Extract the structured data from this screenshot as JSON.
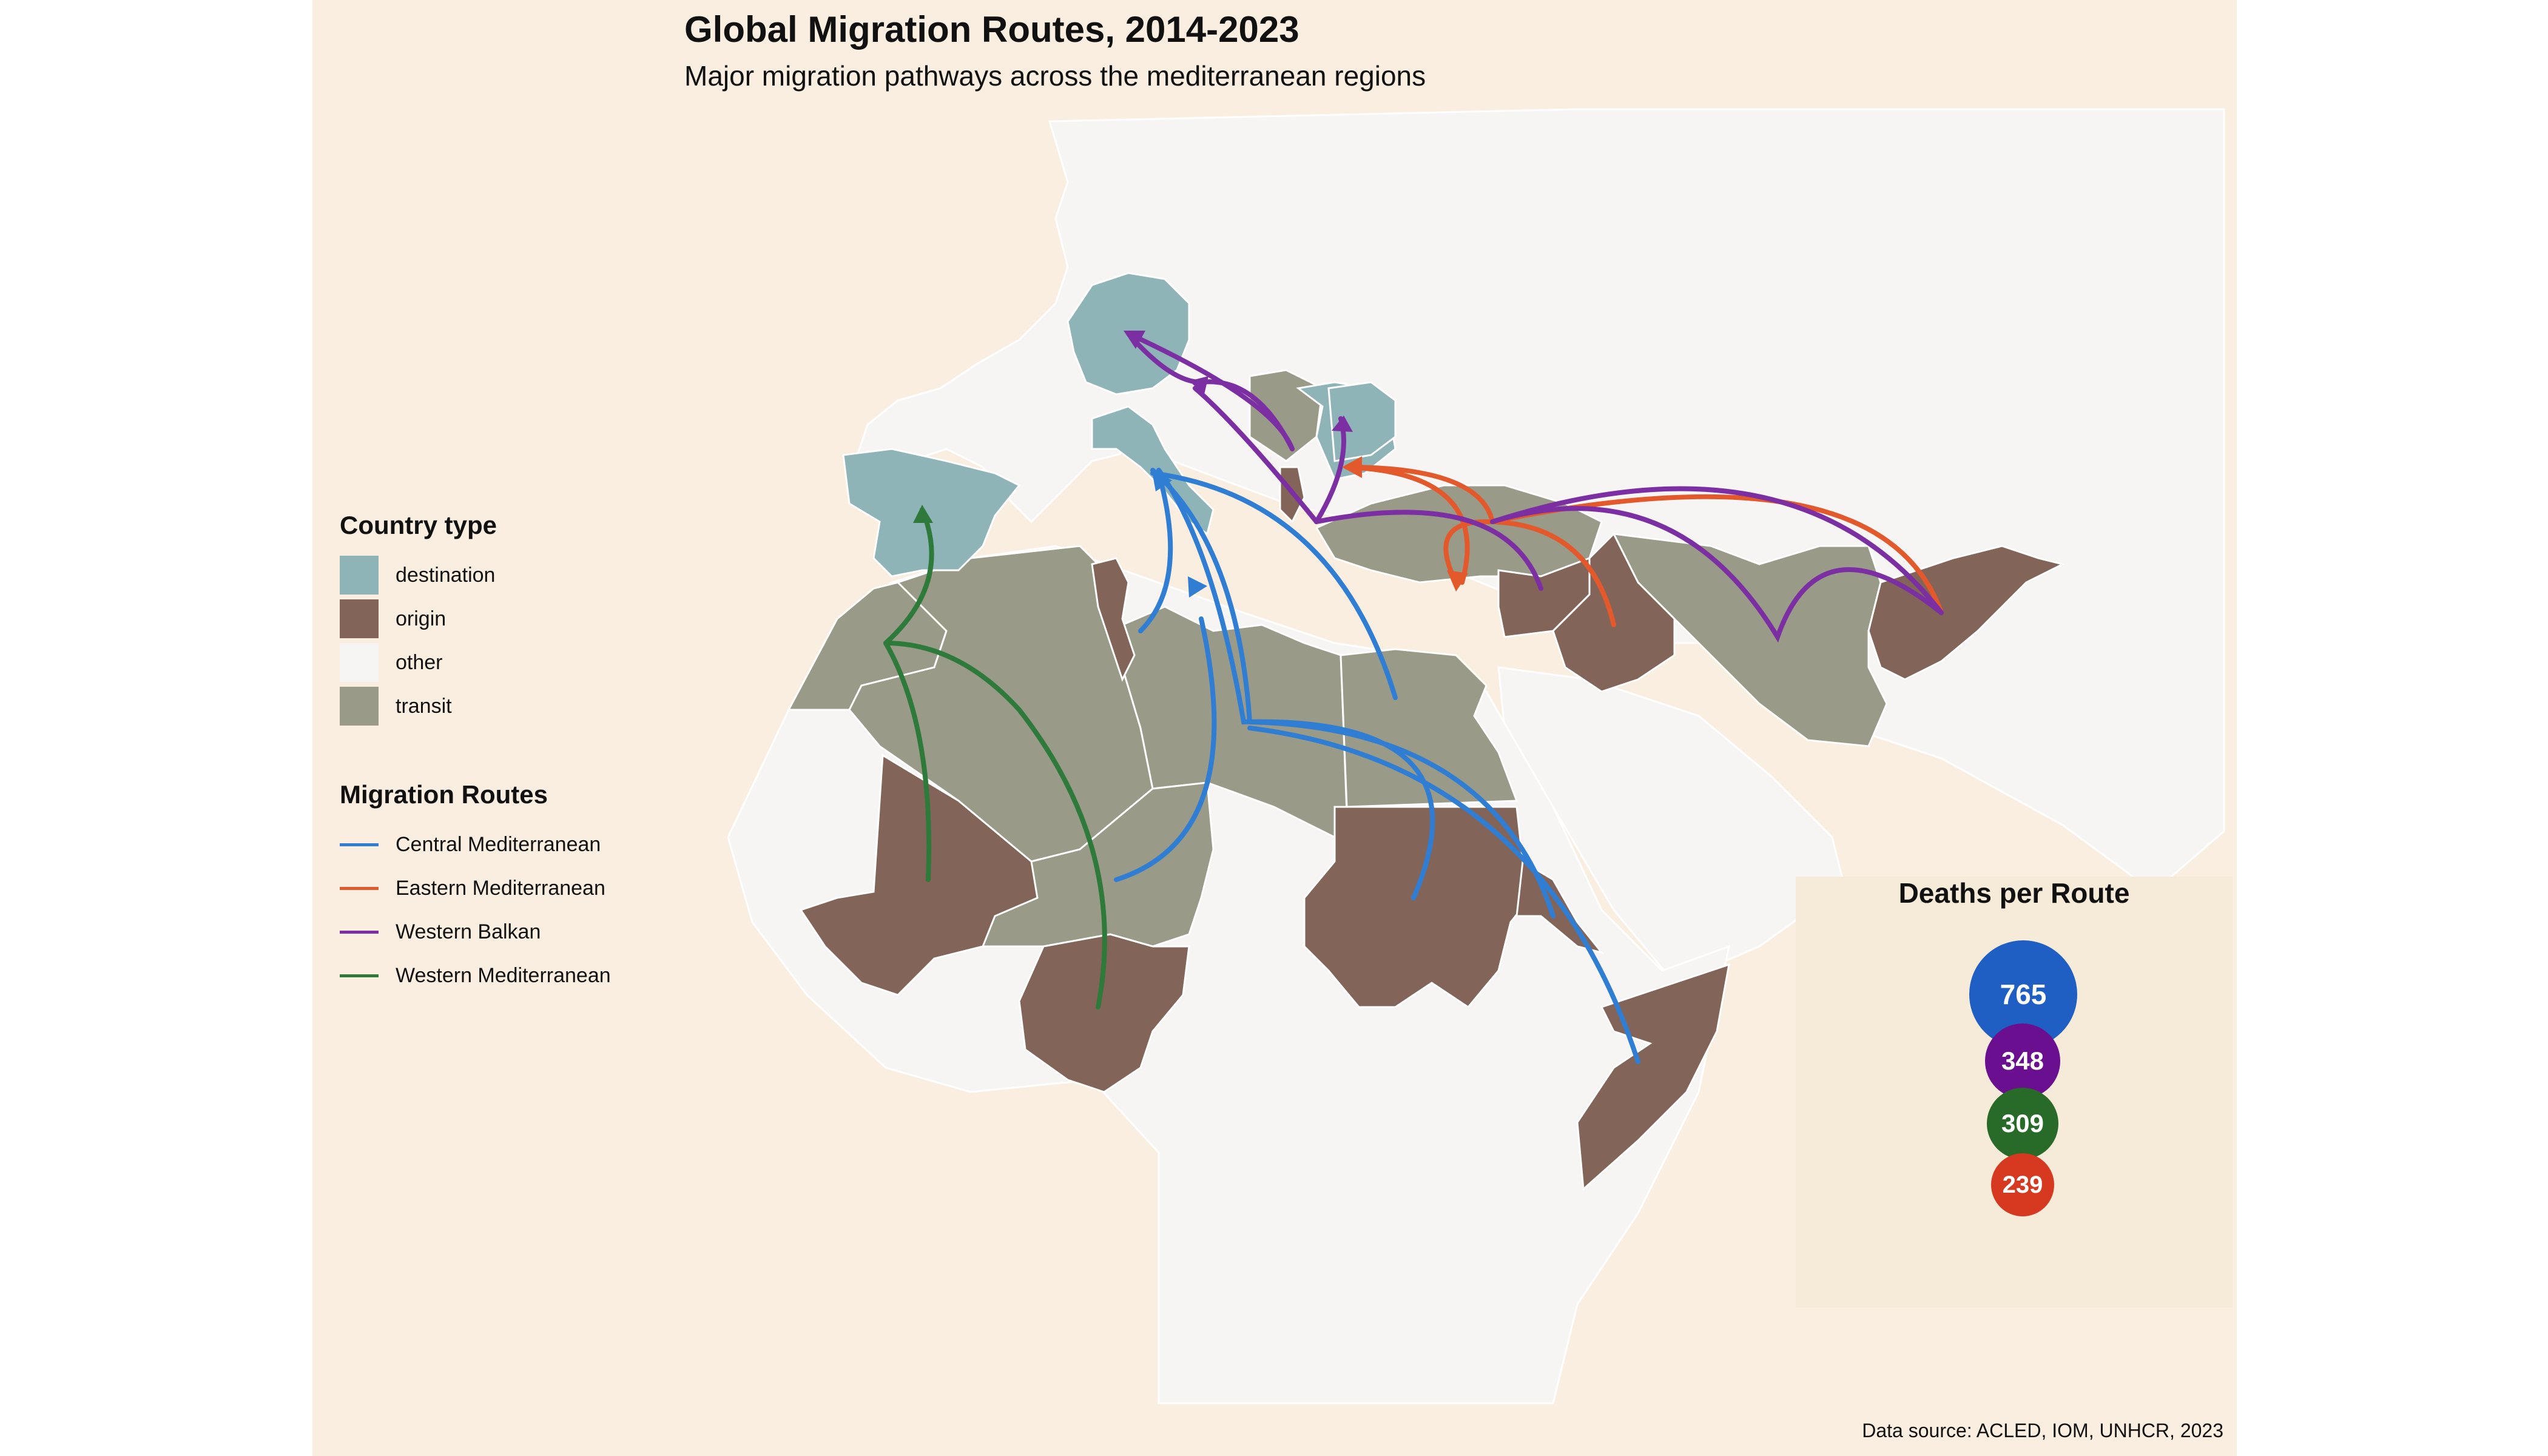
{
  "title": "Global Migration Routes, 2014-2023",
  "subtitle": "Major migration pathways across the mediterranean regions",
  "caption": "Data source: ACLED, IOM, UNHCR, 2023",
  "colors": {
    "background": "#f9eee0",
    "land_other": "#f7f5f3",
    "destination": "#8fb4b8",
    "origin": "#826558",
    "transit": "#999a87",
    "central_med": "#2f7ed4",
    "eastern_med": "#e4592b",
    "western_balkan": "#7c2fa2",
    "western_med": "#2e7a3a"
  },
  "legend_country": {
    "title": "Country type",
    "items": [
      {
        "label": "destination",
        "color": "#8fb4b8"
      },
      {
        "label": "origin",
        "color": "#826558"
      },
      {
        "label": "other",
        "color": "#f7f5f3"
      },
      {
        "label": "transit",
        "color": "#999a87"
      }
    ]
  },
  "legend_routes": {
    "title": "Migration Routes",
    "items": [
      {
        "label": "Central Mediterranean",
        "color": "#2f7ed4"
      },
      {
        "label": "Eastern Mediterranean",
        "color": "#e4592b"
      },
      {
        "label": "Western Balkan",
        "color": "#7c2fa2"
      },
      {
        "label": "Western Mediterranean",
        "color": "#2e7a3a"
      }
    ]
  },
  "deaths": {
    "title": "Deaths per Route",
    "items": [
      {
        "route": "Central Mediterranean",
        "value": 765,
        "color": "#1f5fc4"
      },
      {
        "route": "Western Balkan",
        "value": 348,
        "color": "#6a0f8f"
      },
      {
        "route": "Western Mediterranean",
        "value": 309,
        "color": "#286b28"
      },
      {
        "route": "Eastern Mediterranean",
        "value": 239,
        "color": "#d6391f"
      }
    ]
  }
}
